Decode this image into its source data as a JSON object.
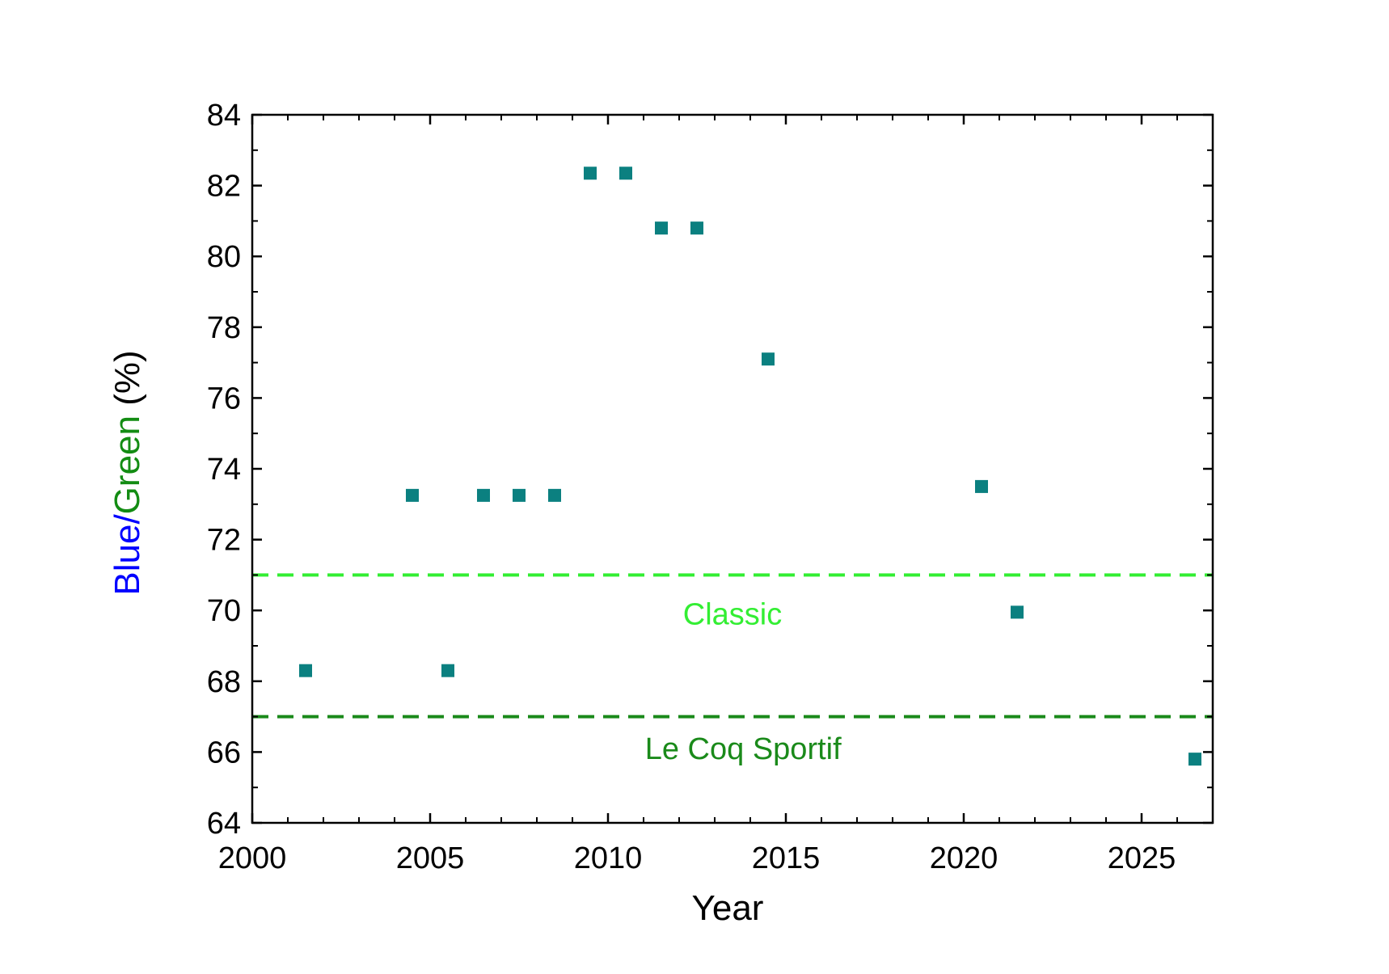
{
  "chart_data": {
    "type": "scatter",
    "xlabel": "Year",
    "ylabel": {
      "blue": "Blue",
      "slash": "/",
      "green": "Green",
      "unit": " (%)"
    },
    "xlim": [
      2000,
      2027
    ],
    "ylim": [
      64,
      84
    ],
    "xticks": [
      "2000",
      "2005",
      "2010",
      "2015",
      "2020",
      "2025"
    ],
    "yticks": [
      "64",
      "66",
      "68",
      "70",
      "72",
      "74",
      "76",
      "78",
      "80",
      "82",
      "84"
    ],
    "grid": false,
    "legend": "none",
    "marker": "square",
    "colors": {
      "marker": "#0b8080",
      "ylabel_blue": "#0000ff",
      "ylabel_green": "#138c13",
      "classic_line": "#33ee33",
      "lecoq_line": "#1a8a1a",
      "axis": "#000000"
    },
    "points": [
      {
        "x": 2001.5,
        "y": 68.3
      },
      {
        "x": 2004.5,
        "y": 73.25
      },
      {
        "x": 2005.5,
        "y": 68.3
      },
      {
        "x": 2006.5,
        "y": 73.25
      },
      {
        "x": 2007.5,
        "y": 73.25
      },
      {
        "x": 2008.5,
        "y": 73.25
      },
      {
        "x": 2009.5,
        "y": 82.35
      },
      {
        "x": 2010.5,
        "y": 82.35
      },
      {
        "x": 2011.5,
        "y": 80.8
      },
      {
        "x": 2012.5,
        "y": 80.8
      },
      {
        "x": 2014.5,
        "y": 77.1
      },
      {
        "x": 2020.5,
        "y": 73.5
      },
      {
        "x": 2021.5,
        "y": 69.95
      },
      {
        "x": 2026.5,
        "y": 65.8
      }
    ],
    "reference_lines": [
      {
        "label": "Classic",
        "y": 71,
        "style": "dashed",
        "color": "#33ee33",
        "label_x": 2013.5,
        "label_y": 69.9
      },
      {
        "label": "Le Coq Sportif",
        "y": 67,
        "style": "dashed",
        "color": "#1a8a1a",
        "label_x": 2013.8,
        "label_y": 66.1
      }
    ]
  }
}
